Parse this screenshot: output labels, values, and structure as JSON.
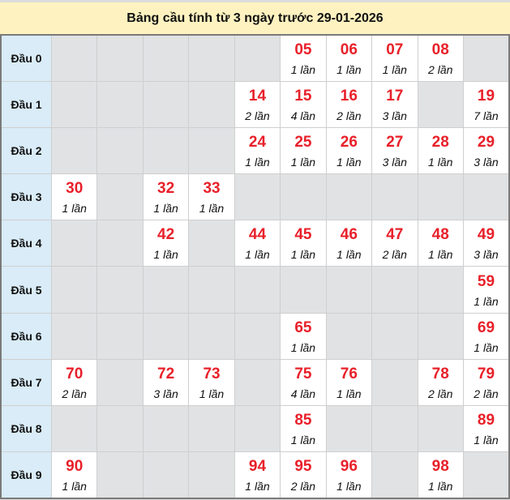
{
  "title": "Bảng cầu tính từ 3 ngày trước 29-01-2026",
  "row_label_prefix": "Đầu",
  "count_suffix": "lần",
  "colors": {
    "number": "#e8202a",
    "header_bg": "#fef2c0",
    "row_head_bg": "#d9ecf7",
    "empty_bg": "#e1e2e4"
  },
  "rows": [
    {
      "label": "Đầu 0",
      "cells": [
        null,
        null,
        null,
        null,
        null,
        {
          "num": "05",
          "count": "1 lần"
        },
        {
          "num": "06",
          "count": "1 lần"
        },
        {
          "num": "07",
          "count": "1 lần"
        },
        {
          "num": "08",
          "count": "2 lần"
        },
        null
      ]
    },
    {
      "label": "Đầu 1",
      "cells": [
        null,
        null,
        null,
        null,
        {
          "num": "14",
          "count": "2 lần"
        },
        {
          "num": "15",
          "count": "4 lần"
        },
        {
          "num": "16",
          "count": "2 lần"
        },
        {
          "num": "17",
          "count": "3 lần"
        },
        null,
        {
          "num": "19",
          "count": "7 lần"
        }
      ]
    },
    {
      "label": "Đầu 2",
      "cells": [
        null,
        null,
        null,
        null,
        {
          "num": "24",
          "count": "1 lần"
        },
        {
          "num": "25",
          "count": "1 lần"
        },
        {
          "num": "26",
          "count": "1 lần"
        },
        {
          "num": "27",
          "count": "3 lần"
        },
        {
          "num": "28",
          "count": "1 lần"
        },
        {
          "num": "29",
          "count": "3 lần"
        }
      ]
    },
    {
      "label": "Đầu 3",
      "cells": [
        {
          "num": "30",
          "count": "1 lần"
        },
        null,
        {
          "num": "32",
          "count": "1 lần"
        },
        {
          "num": "33",
          "count": "1 lần"
        },
        null,
        null,
        null,
        null,
        null,
        null
      ]
    },
    {
      "label": "Đầu 4",
      "cells": [
        null,
        null,
        {
          "num": "42",
          "count": "1 lần"
        },
        null,
        {
          "num": "44",
          "count": "1 lần"
        },
        {
          "num": "45",
          "count": "1 lần"
        },
        {
          "num": "46",
          "count": "1 lần"
        },
        {
          "num": "47",
          "count": "2 lần"
        },
        {
          "num": "48",
          "count": "1 lần"
        },
        {
          "num": "49",
          "count": "3 lần"
        }
      ]
    },
    {
      "label": "Đầu 5",
      "cells": [
        null,
        null,
        null,
        null,
        null,
        null,
        null,
        null,
        null,
        {
          "num": "59",
          "count": "1 lần"
        }
      ]
    },
    {
      "label": "Đầu 6",
      "cells": [
        null,
        null,
        null,
        null,
        null,
        {
          "num": "65",
          "count": "1 lần"
        },
        null,
        null,
        null,
        {
          "num": "69",
          "count": "1 lần"
        }
      ]
    },
    {
      "label": "Đầu 7",
      "cells": [
        {
          "num": "70",
          "count": "2 lần"
        },
        null,
        {
          "num": "72",
          "count": "3 lần"
        },
        {
          "num": "73",
          "count": "1 lần"
        },
        null,
        {
          "num": "75",
          "count": "4 lần"
        },
        {
          "num": "76",
          "count": "1 lần"
        },
        null,
        {
          "num": "78",
          "count": "2 lần"
        },
        {
          "num": "79",
          "count": "2 lần"
        }
      ]
    },
    {
      "label": "Đầu 8",
      "cells": [
        null,
        null,
        null,
        null,
        null,
        {
          "num": "85",
          "count": "1 lần"
        },
        null,
        null,
        null,
        {
          "num": "89",
          "count": "1 lần"
        }
      ]
    },
    {
      "label": "Đầu 9",
      "cells": [
        {
          "num": "90",
          "count": "1 lần"
        },
        null,
        null,
        null,
        {
          "num": "94",
          "count": "1 lần"
        },
        {
          "num": "95",
          "count": "2 lần"
        },
        {
          "num": "96",
          "count": "1 lần"
        },
        null,
        {
          "num": "98",
          "count": "1 lần"
        },
        null
      ]
    }
  ]
}
